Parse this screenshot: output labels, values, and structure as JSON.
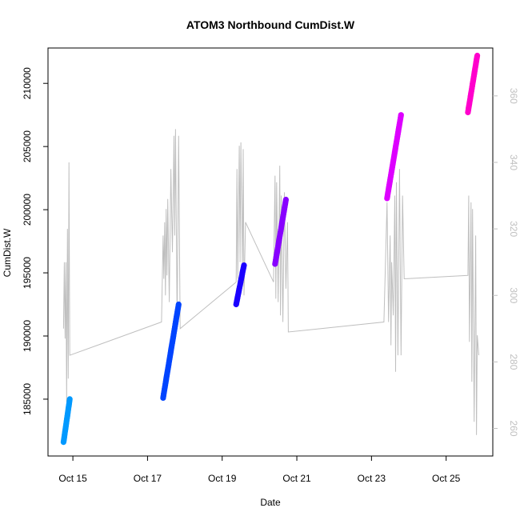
{
  "chart_data": {
    "type": "scatter",
    "title": "ATOM3 Northbound CumDist.W",
    "xlabel": "Date",
    "ylabel": "CumDist.W",
    "x_ticks": [
      {
        "date": "2023-10-15",
        "label": "Oct 15"
      },
      {
        "date": "2023-10-17",
        "label": "Oct 17"
      },
      {
        "date": "2023-10-19",
        "label": "Oct 19"
      },
      {
        "date": "2023-10-21",
        "label": "Oct 21"
      },
      {
        "date": "2023-10-23",
        "label": "Oct 23"
      },
      {
        "date": "2023-10-25",
        "label": "Oct 25"
      }
    ],
    "xlim": [
      "2023-10-14T08:00",
      "2023-10-26T06:00"
    ],
    "ylim": [
      180500,
      212800
    ],
    "y_ticks": [
      185000,
      190000,
      195000,
      200000,
      205000,
      210000
    ],
    "y2lim": [
      251.7,
      374.4
    ],
    "y2_ticks": [
      260,
      280,
      300,
      320,
      340,
      360
    ],
    "grid": false,
    "legend": "none",
    "series": [
      {
        "color": "#0099ff",
        "points": [
          [
            "2023-10-14T18:00",
            181600
          ],
          [
            "2023-10-14T22:00",
            185000
          ]
        ]
      },
      {
        "color": "#0044ff",
        "points": [
          [
            "2023-10-17T10:00",
            185100
          ],
          [
            "2023-10-17T20:00",
            192500
          ]
        ]
      },
      {
        "color": "#1a00ff",
        "points": [
          [
            "2023-10-19T09:00",
            192500
          ],
          [
            "2023-10-19T14:00",
            195600
          ]
        ]
      },
      {
        "color": "#8800ff",
        "points": [
          [
            "2023-10-20T10:00",
            195700
          ],
          [
            "2023-10-20T17:00",
            200800
          ]
        ]
      },
      {
        "color": "#dd00ff",
        "points": [
          [
            "2023-10-23T10:00",
            200900
          ],
          [
            "2023-10-23T19:00",
            207500
          ]
        ]
      },
      {
        "color": "#ff00cc",
        "points": [
          [
            "2023-10-25T14:00",
            207700
          ],
          [
            "2023-10-25T20:00",
            212200
          ]
        ]
      }
    ],
    "secondary_series": {
      "color": "#bfbfbf",
      "points": [
        [
          "2023-10-14T18:00",
          290
        ],
        [
          "2023-10-14T18:30",
          310
        ],
        [
          "2023-10-14T19:00",
          287
        ],
        [
          "2023-10-14T19:30",
          310
        ],
        [
          "2023-10-14T20:00",
          268
        ],
        [
          "2023-10-14T20:30",
          320
        ],
        [
          "2023-10-14T21:00",
          275
        ],
        [
          "2023-10-14T21:30",
          340
        ],
        [
          "2023-10-14T22:00",
          282
        ],
        [
          "2023-10-17T09:00",
          292
        ],
        [
          "2023-10-17T10:00",
          318
        ],
        [
          "2023-10-17T10:30",
          305
        ],
        [
          "2023-10-17T11:00",
          322
        ],
        [
          "2023-10-17T11:30",
          300
        ],
        [
          "2023-10-17T12:00",
          326
        ],
        [
          "2023-10-17T12:30",
          306
        ],
        [
          "2023-10-17T13:00",
          329
        ],
        [
          "2023-10-17T14:00",
          298
        ],
        [
          "2023-10-17T15:00",
          338
        ],
        [
          "2023-10-17T16:00",
          313
        ],
        [
          "2023-10-17T17:00",
          348
        ],
        [
          "2023-10-17T17:30",
          318
        ],
        [
          "2023-10-17T18:00",
          350
        ],
        [
          "2023-10-17T19:00",
          292
        ],
        [
          "2023-10-17T20:00",
          348
        ],
        [
          "2023-10-17T21:00",
          290
        ],
        [
          "2023-10-19T09:00",
          304
        ],
        [
          "2023-10-19T09:30",
          338
        ],
        [
          "2023-10-19T10:00",
          305
        ],
        [
          "2023-10-19T11:00",
          345
        ],
        [
          "2023-10-19T11:30",
          310
        ],
        [
          "2023-10-19T12:00",
          346
        ],
        [
          "2023-10-19T13:00",
          308
        ],
        [
          "2023-10-19T13:30",
          344
        ],
        [
          "2023-10-19T14:00",
          300
        ],
        [
          "2023-10-19T15:00",
          322
        ],
        [
          "2023-10-20T09:00",
          304
        ],
        [
          "2023-10-20T10:00",
          336
        ],
        [
          "2023-10-20T10:30",
          299
        ],
        [
          "2023-10-20T11:00",
          334
        ],
        [
          "2023-10-20T12:00",
          298
        ],
        [
          "2023-10-20T13:00",
          339
        ],
        [
          "2023-10-20T13:30",
          294
        ],
        [
          "2023-10-20T14:00",
          330
        ],
        [
          "2023-10-20T15:00",
          292
        ],
        [
          "2023-10-20T16:00",
          331
        ],
        [
          "2023-10-20T17:00",
          302
        ],
        [
          "2023-10-20T18:00",
          322
        ],
        [
          "2023-10-20T18:30",
          289
        ],
        [
          "2023-10-23T08:00",
          292
        ],
        [
          "2023-10-23T10:00",
          328
        ],
        [
          "2023-10-23T11:00",
          292
        ],
        [
          "2023-10-23T12:00",
          318
        ],
        [
          "2023-10-23T12:30",
          285
        ],
        [
          "2023-10-23T13:00",
          310
        ],
        [
          "2023-10-23T14:00",
          294
        ],
        [
          "2023-10-23T15:00",
          330
        ],
        [
          "2023-10-23T15:30",
          277
        ],
        [
          "2023-10-23T16:00",
          334
        ],
        [
          "2023-10-23T17:00",
          282
        ],
        [
          "2023-10-23T18:00",
          338
        ],
        [
          "2023-10-23T19:00",
          282
        ],
        [
          "2023-10-23T20:00",
          330
        ],
        [
          "2023-10-23T21:00",
          305
        ],
        [
          "2023-10-25T14:00",
          306
        ],
        [
          "2023-10-25T14:30",
          330
        ],
        [
          "2023-10-25T15:00",
          286
        ],
        [
          "2023-10-25T16:00",
          328
        ],
        [
          "2023-10-25T16:30",
          274
        ],
        [
          "2023-10-25T17:00",
          326
        ],
        [
          "2023-10-25T18:00",
          262
        ],
        [
          "2023-10-25T19:00",
          318
        ],
        [
          "2023-10-25T19:30",
          258
        ],
        [
          "2023-10-25T20:00",
          288
        ],
        [
          "2023-10-25T21:00",
          282
        ]
      ]
    }
  }
}
